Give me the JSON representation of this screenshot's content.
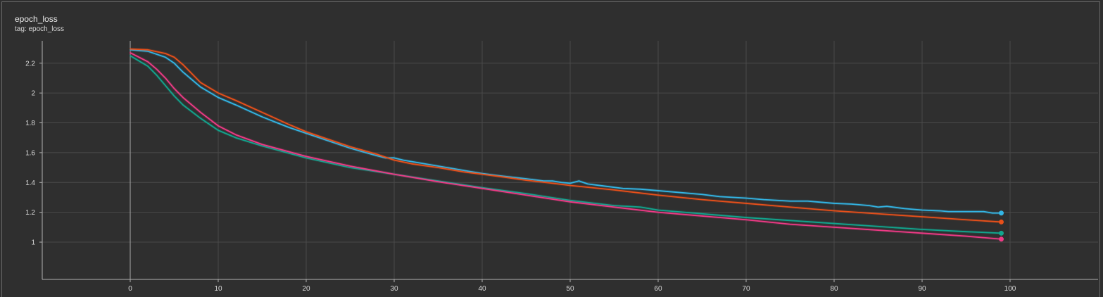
{
  "panel": {
    "title": "epoch_loss",
    "subtitle": "tag: epoch_loss"
  },
  "colors": {
    "background": "#2f2f2f",
    "grid": "#4a4a4a",
    "axis": "#b0b0b0"
  },
  "chart_data": {
    "type": "line",
    "title": "epoch_loss",
    "xlim": [
      -10,
      110
    ],
    "ylim": [
      0.75,
      2.35
    ],
    "x_ticks": [
      0,
      10,
      20,
      30,
      40,
      50,
      60,
      70,
      80,
      90,
      100
    ],
    "y_ticks": [
      1,
      1.2,
      1.4,
      1.6,
      1.8,
      2,
      2.2
    ],
    "y_tick_labels": [
      "1",
      "1.2",
      "1.4",
      "1.6",
      "1.8",
      "2",
      "2.2"
    ],
    "grid": true,
    "series": [
      {
        "color": "#33b5e5",
        "points": [
          [
            0,
            2.29
          ],
          [
            2,
            2.28
          ],
          [
            4,
            2.24
          ],
          [
            5,
            2.2
          ],
          [
            6,
            2.14
          ],
          [
            7,
            2.09
          ],
          [
            8,
            2.04
          ],
          [
            10,
            1.97
          ],
          [
            12,
            1.92
          ],
          [
            15,
            1.84
          ],
          [
            18,
            1.77
          ],
          [
            20,
            1.73
          ],
          [
            22,
            1.69
          ],
          [
            25,
            1.63
          ],
          [
            28,
            1.58
          ],
          [
            29,
            1.565
          ],
          [
            30,
            1.565
          ],
          [
            31,
            1.55
          ],
          [
            33,
            1.53
          ],
          [
            35,
            1.51
          ],
          [
            38,
            1.48
          ],
          [
            40,
            1.46
          ],
          [
            42,
            1.445
          ],
          [
            45,
            1.425
          ],
          [
            47,
            1.41
          ],
          [
            48,
            1.41
          ],
          [
            49,
            1.4
          ],
          [
            50,
            1.395
          ],
          [
            51,
            1.41
          ],
          [
            52,
            1.39
          ],
          [
            54,
            1.375
          ],
          [
            56,
            1.36
          ],
          [
            58,
            1.355
          ],
          [
            60,
            1.345
          ],
          [
            62,
            1.335
          ],
          [
            65,
            1.32
          ],
          [
            67,
            1.305
          ],
          [
            70,
            1.295
          ],
          [
            72,
            1.285
          ],
          [
            75,
            1.275
          ],
          [
            77,
            1.275
          ],
          [
            78,
            1.27
          ],
          [
            80,
            1.26
          ],
          [
            82,
            1.255
          ],
          [
            84,
            1.245
          ],
          [
            85,
            1.235
          ],
          [
            86,
            1.24
          ],
          [
            88,
            1.225
          ],
          [
            90,
            1.215
          ],
          [
            92,
            1.21
          ],
          [
            93,
            1.205
          ],
          [
            95,
            1.205
          ],
          [
            97,
            1.205
          ],
          [
            98,
            1.195
          ],
          [
            99,
            1.195
          ]
        ]
      },
      {
        "color": "#e8501a",
        "points": [
          [
            0,
            2.295
          ],
          [
            2,
            2.29
          ],
          [
            4,
            2.265
          ],
          [
            5,
            2.24
          ],
          [
            6,
            2.19
          ],
          [
            7,
            2.13
          ],
          [
            8,
            2.07
          ],
          [
            10,
            2.0
          ],
          [
            12,
            1.95
          ],
          [
            15,
            1.87
          ],
          [
            18,
            1.79
          ],
          [
            20,
            1.74
          ],
          [
            22,
            1.7
          ],
          [
            25,
            1.64
          ],
          [
            28,
            1.59
          ],
          [
            30,
            1.55
          ],
          [
            32,
            1.525
          ],
          [
            35,
            1.5
          ],
          [
            38,
            1.47
          ],
          [
            40,
            1.455
          ],
          [
            42,
            1.44
          ],
          [
            45,
            1.415
          ],
          [
            48,
            1.395
          ],
          [
            50,
            1.38
          ],
          [
            55,
            1.35
          ],
          [
            60,
            1.315
          ],
          [
            65,
            1.285
          ],
          [
            70,
            1.26
          ],
          [
            75,
            1.235
          ],
          [
            80,
            1.21
          ],
          [
            85,
            1.19
          ],
          [
            90,
            1.17
          ],
          [
            95,
            1.15
          ],
          [
            99,
            1.135
          ]
        ]
      },
      {
        "color": "#12a58e",
        "points": [
          [
            0,
            2.25
          ],
          [
            2,
            2.18
          ],
          [
            3,
            2.12
          ],
          [
            4,
            2.05
          ],
          [
            5,
            1.98
          ],
          [
            6,
            1.92
          ],
          [
            8,
            1.83
          ],
          [
            10,
            1.75
          ],
          [
            12,
            1.7
          ],
          [
            15,
            1.645
          ],
          [
            20,
            1.565
          ],
          [
            25,
            1.5
          ],
          [
            30,
            1.455
          ],
          [
            35,
            1.41
          ],
          [
            40,
            1.365
          ],
          [
            45,
            1.325
          ],
          [
            50,
            1.28
          ],
          [
            55,
            1.245
          ],
          [
            58,
            1.235
          ],
          [
            60,
            1.215
          ],
          [
            65,
            1.19
          ],
          [
            70,
            1.165
          ],
          [
            75,
            1.145
          ],
          [
            80,
            1.125
          ],
          [
            85,
            1.105
          ],
          [
            90,
            1.085
          ],
          [
            95,
            1.07
          ],
          [
            99,
            1.06
          ]
        ]
      },
      {
        "color": "#ef3a86",
        "points": [
          [
            0,
            2.27
          ],
          [
            2,
            2.21
          ],
          [
            3,
            2.16
          ],
          [
            4,
            2.1
          ],
          [
            5,
            2.03
          ],
          [
            6,
            1.97
          ],
          [
            8,
            1.87
          ],
          [
            10,
            1.78
          ],
          [
            12,
            1.72
          ],
          [
            15,
            1.655
          ],
          [
            20,
            1.575
          ],
          [
            25,
            1.51
          ],
          [
            30,
            1.455
          ],
          [
            35,
            1.405
          ],
          [
            40,
            1.36
          ],
          [
            45,
            1.315
          ],
          [
            50,
            1.27
          ],
          [
            55,
            1.235
          ],
          [
            60,
            1.2
          ],
          [
            65,
            1.175
          ],
          [
            70,
            1.15
          ],
          [
            75,
            1.12
          ],
          [
            80,
            1.1
          ],
          [
            85,
            1.08
          ],
          [
            90,
            1.06
          ],
          [
            95,
            1.04
          ],
          [
            99,
            1.02
          ]
        ]
      }
    ]
  }
}
